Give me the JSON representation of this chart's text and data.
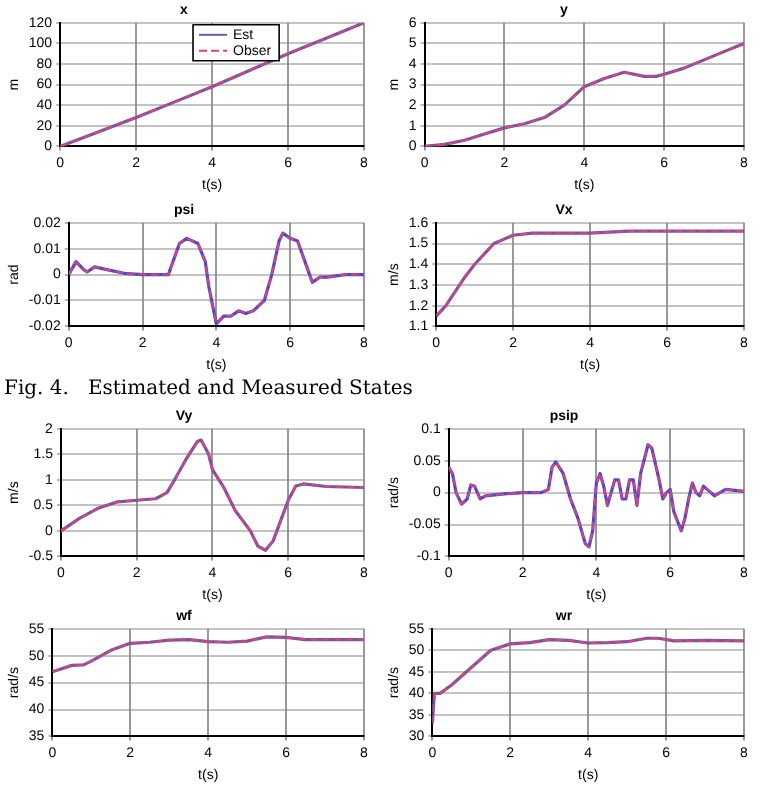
{
  "chart_data": [
    {
      "type": "line",
      "title": "x",
      "xlabel": "t(s)",
      "ylabel": "m",
      "grid": true,
      "marker": "none",
      "legend": "top",
      "x": [
        0,
        1,
        2,
        3,
        4,
        5,
        6,
        7,
        8
      ],
      "series": [
        {
          "name": "Est",
          "color": "#6a5aa8",
          "line_style": "solid",
          "values": [
            0,
            14,
            28,
            43,
            58,
            74,
            90,
            105,
            120
          ]
        },
        {
          "name": "Obser",
          "color": "#e0407a",
          "line_style": "dashed",
          "values": [
            0,
            14,
            28,
            43,
            58,
            74,
            90,
            105,
            120
          ]
        }
      ],
      "xlim": [
        0,
        8
      ],
      "xticks": [
        0,
        2,
        4,
        6,
        8
      ],
      "ylim": [
        0,
        120
      ],
      "yticks": [
        0,
        20,
        40,
        60,
        80,
        100,
        120
      ]
    },
    {
      "type": "line",
      "title": "y",
      "xlabel": "t(s)",
      "ylabel": "m",
      "grid": true,
      "marker": "none",
      "x": [
        0,
        0.5,
        1,
        1.5,
        2,
        2.5,
        3,
        3.5,
        4,
        4.5,
        5,
        5.5,
        5.8,
        6,
        6.5,
        7,
        7.5,
        8
      ],
      "series": [
        {
          "color": "#6a5aa8",
          "line_style": "solid",
          "values": [
            0,
            0.1,
            0.3,
            0.6,
            0.9,
            1.1,
            1.4,
            2.0,
            2.9,
            3.3,
            3.6,
            3.4,
            3.4,
            3.5,
            3.8,
            4.2,
            4.6,
            5.0
          ]
        },
        {
          "color": "#e0407a",
          "line_style": "dashed",
          "values": [
            0,
            0.1,
            0.3,
            0.6,
            0.9,
            1.1,
            1.4,
            2.0,
            2.9,
            3.3,
            3.6,
            3.4,
            3.4,
            3.5,
            3.8,
            4.2,
            4.6,
            5.0
          ]
        }
      ],
      "xlim": [
        0,
        8
      ],
      "xticks": [
        0,
        2,
        4,
        6,
        8
      ],
      "ylim": [
        0,
        6
      ],
      "yticks": [
        0,
        1,
        2,
        3,
        4,
        5,
        6
      ]
    },
    {
      "type": "line",
      "title": "psi",
      "xlabel": "t(s)",
      "ylabel": "rad",
      "grid": true,
      "marker": "none",
      "annotations": [
        "Fig. 4.   Estimated and Measured States"
      ],
      "x": [
        0,
        0.2,
        0.4,
        0.5,
        0.7,
        1,
        1.5,
        2,
        2.5,
        2.7,
        3,
        3.2,
        3.5,
        3.7,
        3.8,
        4,
        4.2,
        4.4,
        4.6,
        4.8,
        5,
        5.3,
        5.5,
        5.7,
        5.8,
        6,
        6.2,
        6.4,
        6.6,
        6.8,
        7,
        7.5,
        8
      ],
      "series": [
        {
          "color": "#4a4ad0",
          "line_style": "solid",
          "values": [
            0,
            0.005,
            0.002,
            0.001,
            0.003,
            0.002,
            0.0005,
            0,
            0,
            0,
            0.012,
            0.014,
            0.012,
            0.005,
            -0.005,
            -0.019,
            -0.016,
            -0.016,
            -0.014,
            -0.015,
            -0.014,
            -0.01,
            0,
            0.013,
            0.016,
            0.014,
            0.013,
            0.005,
            -0.003,
            -0.001,
            -0.001,
            0,
            0
          ]
        },
        {
          "color": "#e0407a",
          "line_style": "dashed",
          "values": [
            0,
            0.005,
            0.002,
            0.001,
            0.003,
            0.002,
            0.0005,
            0,
            0,
            0,
            0.012,
            0.014,
            0.012,
            0.005,
            -0.005,
            -0.019,
            -0.016,
            -0.016,
            -0.014,
            -0.015,
            -0.014,
            -0.01,
            0,
            0.013,
            0.016,
            0.014,
            0.013,
            0.005,
            -0.003,
            -0.001,
            -0.001,
            0,
            0
          ]
        }
      ],
      "xlim": [
        0,
        8
      ],
      "xticks": [
        0,
        2,
        4,
        6,
        8
      ],
      "ylim": [
        -0.02,
        0.02
      ],
      "yticks": [
        -0.02,
        -0.01,
        0,
        0.01,
        0.02
      ]
    },
    {
      "type": "line",
      "title": "Vx",
      "xlabel": "t(s)",
      "ylabel": "m/s",
      "grid": true,
      "marker": "none",
      "x": [
        0,
        0.25,
        0.5,
        0.75,
        1,
        1.25,
        1.5,
        1.75,
        2,
        2.5,
        3,
        3.5,
        4,
        5,
        6,
        7,
        8
      ],
      "series": [
        {
          "color": "#6a5aa8",
          "line_style": "solid",
          "values": [
            1.15,
            1.2,
            1.27,
            1.34,
            1.4,
            1.45,
            1.5,
            1.52,
            1.54,
            1.55,
            1.55,
            1.55,
            1.55,
            1.56,
            1.56,
            1.56,
            1.56
          ]
        },
        {
          "color": "#e0407a",
          "line_style": "dashed",
          "values": [
            1.15,
            1.2,
            1.27,
            1.34,
            1.4,
            1.45,
            1.5,
            1.52,
            1.54,
            1.55,
            1.55,
            1.55,
            1.55,
            1.56,
            1.56,
            1.56,
            1.56
          ]
        }
      ],
      "xlim": [
        0,
        8
      ],
      "xticks": [
        0,
        2,
        4,
        6,
        8
      ],
      "ylim": [
        1.1,
        1.6
      ],
      "yticks": [
        1.1,
        1.2,
        1.3,
        1.4,
        1.5,
        1.6
      ]
    },
    {
      "type": "line",
      "title": "Vy",
      "xlabel": "t(s)",
      "ylabel": "m/s",
      "grid": true,
      "marker": "none",
      "x": [
        0,
        0.5,
        1,
        1.5,
        2,
        2.5,
        2.8,
        3,
        3.3,
        3.6,
        3.7,
        3.9,
        4,
        4.3,
        4.6,
        5,
        5.2,
        5.4,
        5.6,
        5.8,
        6,
        6.2,
        6.4,
        7,
        8
      ],
      "series": [
        {
          "color": "#6a5aa8",
          "line_style": "solid",
          "values": [
            0,
            0.25,
            0.45,
            0.57,
            0.6,
            0.63,
            0.75,
            1.0,
            1.4,
            1.75,
            1.78,
            1.5,
            1.2,
            0.85,
            0.4,
            0,
            -0.3,
            -0.38,
            -0.2,
            0.2,
            0.6,
            0.88,
            0.92,
            0.87,
            0.85
          ]
        },
        {
          "color": "#e0407a",
          "line_style": "dashed",
          "values": [
            0,
            0.25,
            0.45,
            0.57,
            0.6,
            0.63,
            0.75,
            1.0,
            1.4,
            1.75,
            1.78,
            1.5,
            1.2,
            0.85,
            0.4,
            0,
            -0.3,
            -0.38,
            -0.2,
            0.2,
            0.6,
            0.88,
            0.92,
            0.87,
            0.85
          ]
        }
      ],
      "xlim": [
        0,
        8
      ],
      "xticks": [
        0,
        2,
        4,
        6,
        8
      ],
      "ylim": [
        -0.5,
        2
      ],
      "yticks": [
        -0.5,
        0,
        0.5,
        1,
        1.5,
        2
      ]
    },
    {
      "type": "line",
      "title": "psip",
      "xlabel": "t(s)",
      "ylabel": "rad/s",
      "grid": true,
      "marker": "none",
      "x": [
        0,
        0.1,
        0.2,
        0.35,
        0.5,
        0.6,
        0.7,
        0.85,
        1,
        1.5,
        2,
        2.5,
        2.7,
        2.8,
        2.9,
        3.1,
        3.3,
        3.5,
        3.7,
        3.8,
        3.9,
        4,
        4.1,
        4.2,
        4.3,
        4.4,
        4.5,
        4.6,
        4.7,
        4.8,
        4.9,
        5,
        5.1,
        5.2,
        5.4,
        5.5,
        5.7,
        5.8,
        5.9,
        6,
        6.1,
        6.3,
        6.4,
        6.5,
        6.6,
        6.7,
        6.8,
        6.9,
        7,
        7.2,
        7.5,
        8
      ],
      "series": [
        {
          "color": "#4a4ad0",
          "line_style": "solid",
          "values": [
            0.04,
            0.03,
            0,
            -0.018,
            -0.01,
            0.012,
            0.01,
            -0.01,
            -0.005,
            -0.002,
            0,
            0,
            0.005,
            0.04,
            0.048,
            0.03,
            -0.01,
            -0.04,
            -0.08,
            -0.085,
            -0.06,
            0.015,
            0.03,
            0.01,
            -0.02,
            0,
            0.02,
            0.02,
            -0.01,
            -0.01,
            0.02,
            0.02,
            -0.02,
            0.03,
            0.075,
            0.07,
            0.02,
            -0.01,
            0,
            0.005,
            -0.03,
            -0.06,
            -0.04,
            -0.01,
            0.015,
            0,
            -0.005,
            0.01,
            0.005,
            -0.005,
            0.005,
            0.002
          ]
        },
        {
          "color": "#e0407a",
          "line_style": "dashed",
          "values": [
            0.04,
            0.03,
            0,
            -0.018,
            -0.01,
            0.012,
            0.01,
            -0.01,
            -0.005,
            -0.002,
            0,
            0,
            0.005,
            0.04,
            0.048,
            0.03,
            -0.01,
            -0.04,
            -0.08,
            -0.085,
            -0.06,
            0.015,
            0.03,
            0.01,
            -0.02,
            0,
            0.02,
            0.02,
            -0.01,
            -0.01,
            0.02,
            0.02,
            -0.02,
            0.03,
            0.075,
            0.07,
            0.02,
            -0.01,
            0,
            0.005,
            -0.03,
            -0.06,
            -0.04,
            -0.01,
            0.015,
            0,
            -0.005,
            0.01,
            0.005,
            -0.005,
            0.005,
            0.002
          ]
        }
      ],
      "xlim": [
        0,
        8
      ],
      "xticks": [
        0,
        2,
        4,
        6,
        8
      ],
      "ylim": [
        -0.1,
        0.1
      ],
      "yticks": [
        -0.1,
        -0.05,
        0,
        0.05,
        0.1
      ]
    },
    {
      "type": "line",
      "title": "wf",
      "xlabel": "t(s)",
      "ylabel": "rad/s",
      "grid": true,
      "marker": "none",
      "x": [
        0,
        0.2,
        0.5,
        0.8,
        1,
        1.5,
        2,
        2.5,
        3,
        3.5,
        4,
        4.5,
        5,
        5.5,
        6,
        6.5,
        7,
        8
      ],
      "series": [
        {
          "color": "#6a5aa8",
          "line_style": "solid",
          "values": [
            47,
            47.5,
            48.2,
            48.3,
            49,
            51,
            52.3,
            52.5,
            52.9,
            53,
            52.6,
            52.5,
            52.7,
            53.5,
            53.4,
            53,
            53,
            53
          ]
        },
        {
          "color": "#e0407a",
          "line_style": "dashed",
          "values": [
            47,
            47.5,
            48.2,
            48.3,
            49,
            51,
            52.3,
            52.5,
            52.9,
            53,
            52.6,
            52.5,
            52.7,
            53.5,
            53.4,
            53,
            53,
            53
          ]
        }
      ],
      "xlim": [
        0,
        8
      ],
      "xticks": [
        0,
        2,
        4,
        6,
        8
      ],
      "ylim": [
        35,
        55
      ],
      "yticks": [
        35,
        40,
        45,
        50,
        55
      ]
    },
    {
      "type": "line",
      "title": "wr",
      "xlabel": "t(s)",
      "ylabel": "rad/s",
      "grid": true,
      "marker": "none",
      "x": [
        0,
        0.05,
        0.2,
        0.5,
        1,
        1.5,
        2,
        2.5,
        3,
        3.5,
        4,
        4.5,
        5,
        5.5,
        5.8,
        6.2,
        7,
        8
      ],
      "series": [
        {
          "color": "#6a5aa8",
          "line_style": "solid",
          "values": [
            33,
            40,
            40,
            42,
            46,
            50,
            51.5,
            51.8,
            52.5,
            52.3,
            51.7,
            51.8,
            52,
            52.8,
            52.8,
            52.2,
            52.3,
            52.2
          ]
        },
        {
          "color": "#e0407a",
          "line_style": "dashed",
          "values": [
            33,
            40,
            40,
            42,
            46,
            50,
            51.5,
            51.8,
            52.5,
            52.3,
            51.7,
            51.8,
            52,
            52.8,
            52.8,
            52.2,
            52.3,
            52.2
          ]
        }
      ],
      "xlim": [
        0,
        8
      ],
      "xticks": [
        0,
        2,
        4,
        6,
        8
      ],
      "ylim": [
        30,
        55
      ],
      "yticks": [
        30,
        35,
        40,
        45,
        50,
        55
      ]
    }
  ]
}
